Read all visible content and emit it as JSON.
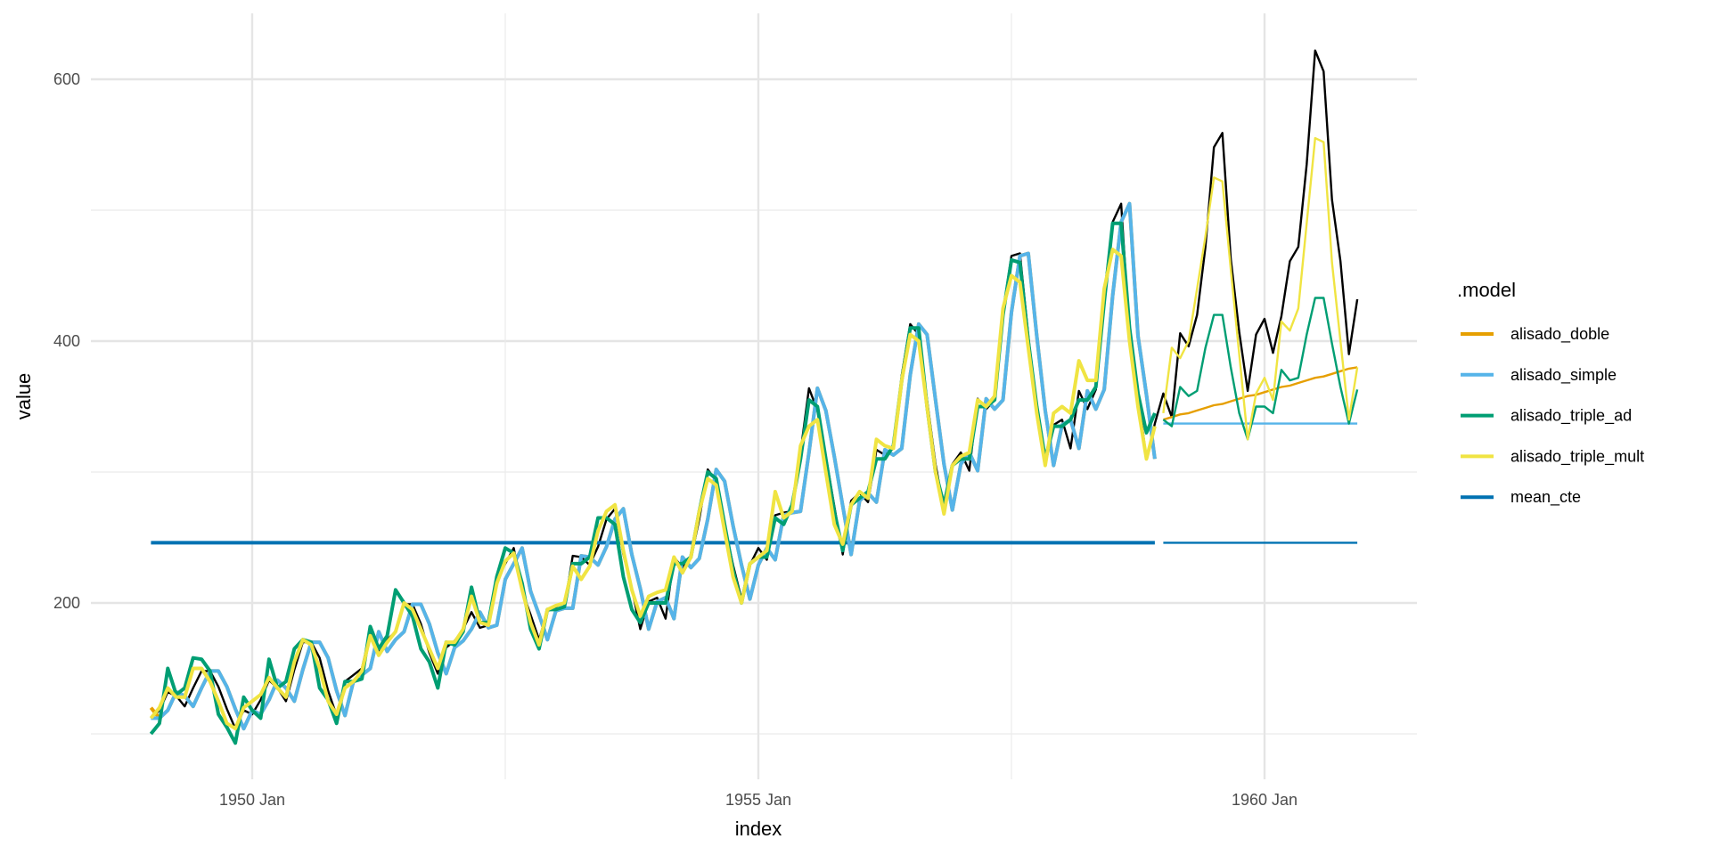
{
  "chart_data": {
    "type": "line",
    "title": "",
    "xlabel": "index",
    "ylabel": "value",
    "x_start": "1949 Jan",
    "x_end": "1960 Dec",
    "ylim": [
      65,
      650
    ],
    "y_ticks": [
      200,
      400,
      600
    ],
    "y_tick_labels": [
      "200",
      "400",
      "600"
    ],
    "x_ticks": [
      "1950 Jan",
      "1955 Jan",
      "1960 Jan"
    ],
    "grid": true,
    "legend": {
      "title": ".model",
      "position": "right",
      "entries": [
        "alisado_doble",
        "alisado_simple",
        "alisado_triple_ad",
        "alisado_triple_mult",
        "mean_cte"
      ]
    },
    "colors": {
      "actual": "#000000",
      "alisado_doble": "#E69F00",
      "alisado_simple": "#56B4E9",
      "alisado_triple_ad": "#009E73",
      "alisado_triple_mult": "#F0E442",
      "mean_cte": "#0072B2"
    },
    "actual": [
      112,
      118,
      132,
      129,
      121,
      135,
      148,
      148,
      136,
      119,
      104,
      118,
      115,
      126,
      141,
      135,
      125,
      149,
      170,
      170,
      158,
      133,
      114,
      140,
      145,
      150,
      178,
      163,
      172,
      178,
      199,
      199,
      184,
      162,
      146,
      166,
      171,
      180,
      193,
      181,
      183,
      218,
      230,
      242,
      209,
      191,
      172,
      194,
      196,
      196,
      236,
      235,
      229,
      243,
      264,
      272,
      237,
      211,
      180,
      201,
      204,
      188,
      235,
      227,
      234,
      264,
      302,
      293,
      259,
      229,
      203,
      229,
      242,
      233,
      267,
      269,
      270,
      315,
      364,
      347,
      312,
      274,
      237,
      278,
      284,
      277,
      317,
      313,
      318,
      374,
      413,
      405,
      355,
      306,
      271,
      306,
      315,
      301,
      356,
      348,
      355,
      422,
      465,
      467,
      404,
      347,
      305,
      336,
      340,
      318,
      362,
      348,
      363,
      435,
      491,
      505,
      404,
      359,
      310,
      337,
      360,
      342,
      406,
      396,
      420,
      472,
      548,
      559,
      463,
      407,
      362,
      405,
      417,
      391,
      419,
      461,
      472,
      535,
      622,
      606,
      508,
      461,
      390,
      432
    ],
    "fitted": {
      "alisado_doble": [
        120,
        112,
        118,
        132,
        129,
        121,
        135,
        148,
        148,
        136,
        119,
        104,
        118,
        115,
        126,
        141,
        135,
        125,
        149,
        170,
        170,
        158,
        133,
        114,
        140,
        145,
        150,
        178,
        163,
        172,
        178,
        199,
        199,
        184,
        162,
        146,
        166,
        171,
        180,
        193,
        181,
        183,
        218,
        230,
        242,
        209,
        191,
        172,
        194,
        196,
        196,
        236,
        235,
        229,
        243,
        264,
        272,
        237,
        211,
        180,
        201,
        204,
        188,
        235,
        227,
        234,
        264,
        302,
        293,
        259,
        229,
        203,
        229,
        242,
        233,
        267,
        269,
        270,
        315,
        364,
        347,
        312,
        274,
        237,
        278,
        284,
        277,
        317,
        313,
        318,
        374,
        413,
        405,
        355,
        306,
        271,
        306,
        315,
        301,
        356,
        348,
        355,
        422,
        465,
        467,
        404,
        347,
        305,
        336,
        340,
        318,
        362,
        348,
        363,
        435,
        491,
        505,
        404,
        359,
        310
      ],
      "alisado_simple": [
        112,
        112,
        118,
        132,
        129,
        121,
        135,
        148,
        148,
        136,
        119,
        104,
        118,
        115,
        126,
        141,
        135,
        125,
        149,
        170,
        170,
        158,
        133,
        114,
        140,
        145,
        150,
        178,
        163,
        172,
        178,
        199,
        199,
        184,
        162,
        146,
        166,
        171,
        180,
        193,
        181,
        183,
        218,
        230,
        242,
        209,
        191,
        172,
        194,
        196,
        196,
        236,
        235,
        229,
        243,
        264,
        272,
        237,
        211,
        180,
        201,
        204,
        188,
        235,
        227,
        234,
        264,
        302,
        293,
        259,
        229,
        203,
        229,
        242,
        233,
        267,
        269,
        270,
        315,
        364,
        347,
        312,
        274,
        237,
        278,
        284,
        277,
        317,
        313,
        318,
        374,
        413,
        405,
        355,
        306,
        271,
        306,
        315,
        301,
        356,
        348,
        355,
        422,
        465,
        467,
        404,
        347,
        305,
        336,
        340,
        318,
        362,
        348,
        363,
        435,
        491,
        505,
        404,
        359,
        310
      ],
      "alisado_triple_ad": [
        100,
        108,
        150,
        130,
        135,
        158,
        157,
        148,
        115,
        105,
        93,
        128,
        118,
        112,
        157,
        135,
        140,
        165,
        172,
        170,
        135,
        126,
        108,
        140,
        140,
        142,
        182,
        165,
        175,
        210,
        200,
        190,
        165,
        155,
        135,
        170,
        168,
        178,
        212,
        185,
        185,
        220,
        242,
        238,
        215,
        180,
        165,
        195,
        195,
        197,
        230,
        230,
        235,
        265,
        265,
        260,
        220,
        195,
        185,
        200,
        200,
        200,
        230,
        230,
        235,
        270,
        300,
        295,
        260,
        225,
        200,
        230,
        235,
        235,
        265,
        260,
        275,
        310,
        355,
        350,
        310,
        270,
        240,
        275,
        280,
        285,
        310,
        310,
        320,
        370,
        410,
        410,
        350,
        300,
        275,
        305,
        310,
        310,
        350,
        350,
        355,
        420,
        462,
        460,
        400,
        350,
        310,
        335,
        335,
        340,
        355,
        355,
        365,
        430,
        490,
        490,
        410,
        360,
        330,
        345
      ],
      "alisado_triple_mult": [
        112,
        120,
        135,
        128,
        128,
        150,
        150,
        140,
        125,
        108,
        104,
        120,
        125,
        130,
        143,
        135,
        128,
        155,
        172,
        168,
        150,
        125,
        115,
        135,
        140,
        148,
        175,
        160,
        170,
        178,
        200,
        195,
        180,
        165,
        150,
        170,
        170,
        180,
        205,
        185,
        183,
        215,
        232,
        238,
        210,
        185,
        168,
        195,
        198,
        200,
        228,
        218,
        228,
        255,
        270,
        275,
        240,
        210,
        190,
        205,
        208,
        210,
        235,
        223,
        235,
        270,
        295,
        290,
        255,
        220,
        200,
        230,
        235,
        240,
        285,
        265,
        270,
        320,
        335,
        340,
        300,
        260,
        245,
        275,
        285,
        280,
        325,
        320,
        318,
        370,
        405,
        400,
        350,
        300,
        268,
        305,
        312,
        315,
        355,
        350,
        358,
        425,
        450,
        445,
        395,
        345,
        305,
        345,
        350,
        345,
        385,
        370,
        370,
        440,
        470,
        465,
        400,
        350,
        310,
        335
      ],
      "mean_cte": 246
    },
    "forecast": {
      "alisado_doble": [
        340,
        342,
        344,
        345,
        347,
        349,
        351,
        352,
        354,
        356,
        358,
        359,
        361,
        363,
        365,
        366,
        368,
        370,
        372,
        373,
        375,
        377,
        379,
        380
      ],
      "alisado_simple": 337,
      "alisado_triple_ad": [
        340,
        335,
        365,
        358,
        362,
        395,
        420,
        420,
        380,
        345,
        325,
        350,
        350,
        345,
        378,
        370,
        372,
        405,
        433,
        433,
        398,
        365,
        337,
        363
      ],
      "alisado_triple_mult": [
        345,
        395,
        387,
        400,
        440,
        480,
        525,
        522,
        455,
        390,
        325,
        360,
        372,
        355,
        415,
        408,
        425,
        490,
        555,
        552,
        460,
        400,
        340,
        380
      ],
      "mean_cte": 246
    }
  }
}
